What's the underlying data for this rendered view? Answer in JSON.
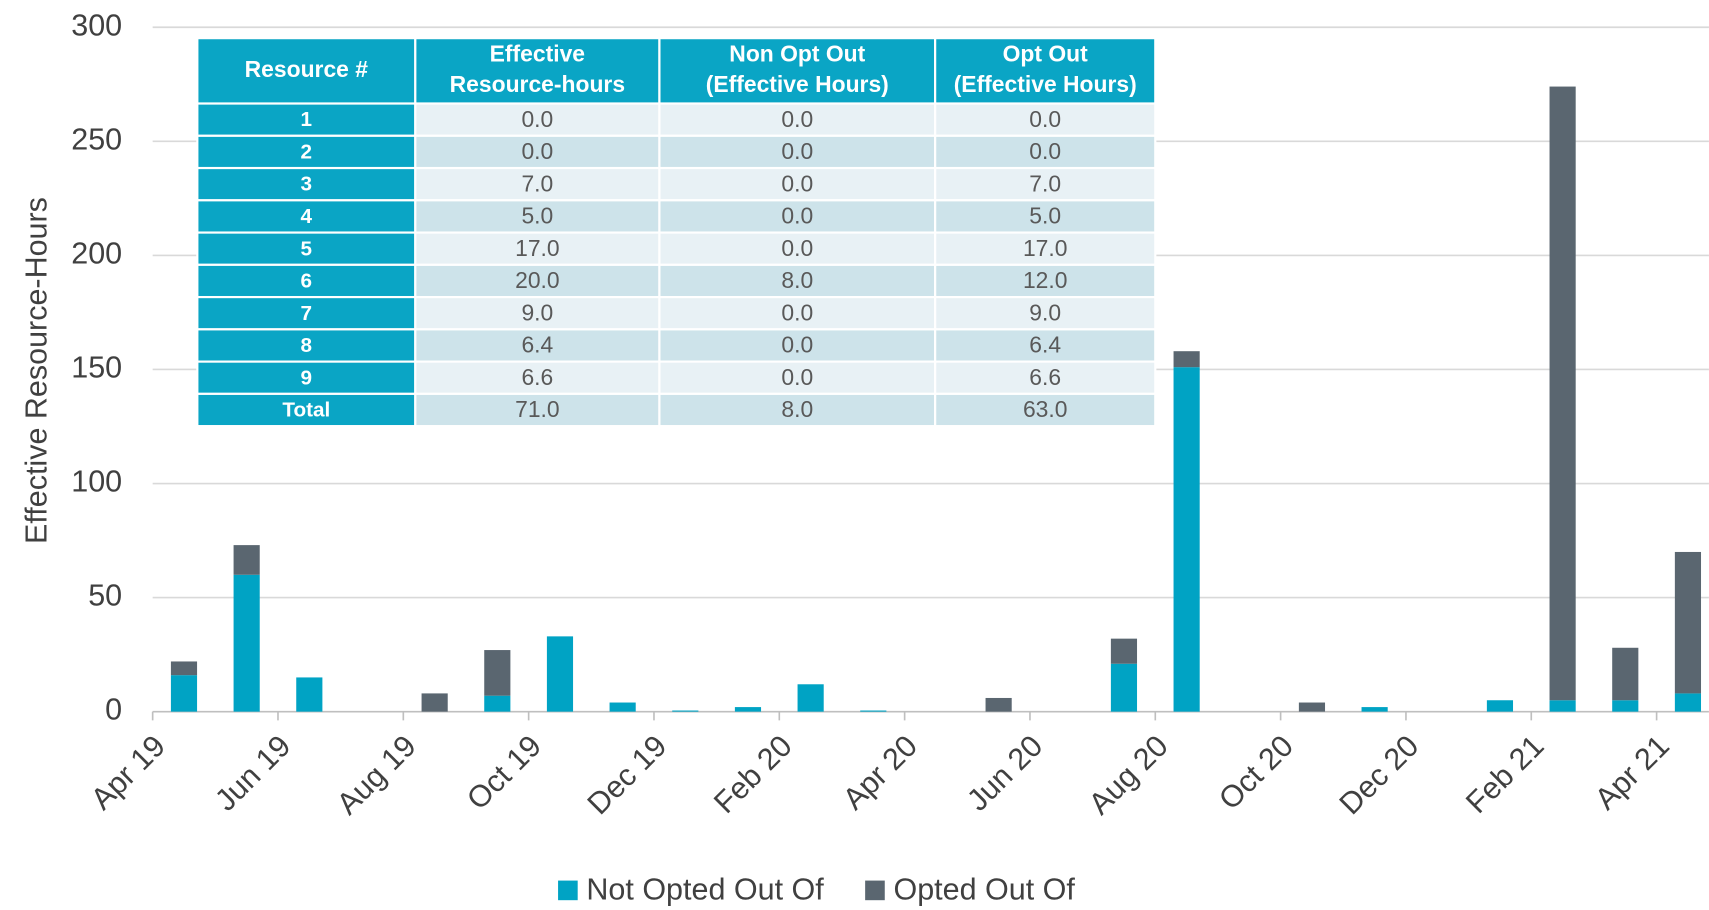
{
  "chart_data": {
    "type": "bar",
    "stacked": true,
    "y_label": "Effective Resource-Hours",
    "categories": [
      "Apr 19",
      null,
      "Jun 19",
      null,
      "Aug 19",
      null,
      "Oct 19",
      null,
      "Dec 19",
      null,
      "Feb 20",
      null,
      "Apr 20",
      null,
      "Jun 20",
      null,
      "Aug 20",
      null,
      "Oct 20",
      null,
      "Dec 20",
      null,
      "Feb 21",
      null,
      "Apr 21"
    ],
    "series": [
      {
        "name": "Not Opted Out Of",
        "color": "#00a3c4",
        "values": [
          16,
          60,
          15,
          0,
          0,
          7,
          33,
          4,
          0.5,
          2,
          12,
          0.5,
          0,
          0,
          0,
          21,
          151,
          0,
          0,
          2,
          0,
          5,
          5,
          5,
          8
        ]
      },
      {
        "name": "Opted Out Of",
        "color": "#5a6670",
        "values": [
          6,
          13,
          0,
          0,
          8,
          20,
          0,
          0,
          0,
          0,
          0,
          0,
          0,
          6,
          0,
          11,
          7,
          0,
          4,
          0,
          0,
          0,
          269,
          23,
          62
        ]
      }
    ],
    "ylim": [
      0,
      300
    ],
    "yticks": [
      0,
      50,
      100,
      150,
      200,
      250,
      300
    ],
    "grid": true,
    "legend": "bottom"
  },
  "table": {
    "columns": [
      [
        "Resource #"
      ],
      [
        "Effective",
        "Resource-hours"
      ],
      [
        "Non Opt Out",
        "(Effective Hours)"
      ],
      [
        "Opt Out",
        "(Effective Hours)"
      ]
    ],
    "rows": [
      [
        "1",
        "0.0",
        "0.0",
        "0.0"
      ],
      [
        "2",
        "0.0",
        "0.0",
        "0.0"
      ],
      [
        "3",
        "7.0",
        "0.0",
        "7.0"
      ],
      [
        "4",
        "5.0",
        "0.0",
        "5.0"
      ],
      [
        "5",
        "17.0",
        "0.0",
        "17.0"
      ],
      [
        "6",
        "20.0",
        "8.0",
        "12.0"
      ],
      [
        "7",
        "9.0",
        "0.0",
        "9.0"
      ],
      [
        "8",
        "6.4",
        "0.0",
        "6.4"
      ],
      [
        "9",
        "6.6",
        "0.0",
        "6.6"
      ],
      [
        "Total",
        "71.0",
        "8.0",
        "63.0"
      ]
    ]
  }
}
